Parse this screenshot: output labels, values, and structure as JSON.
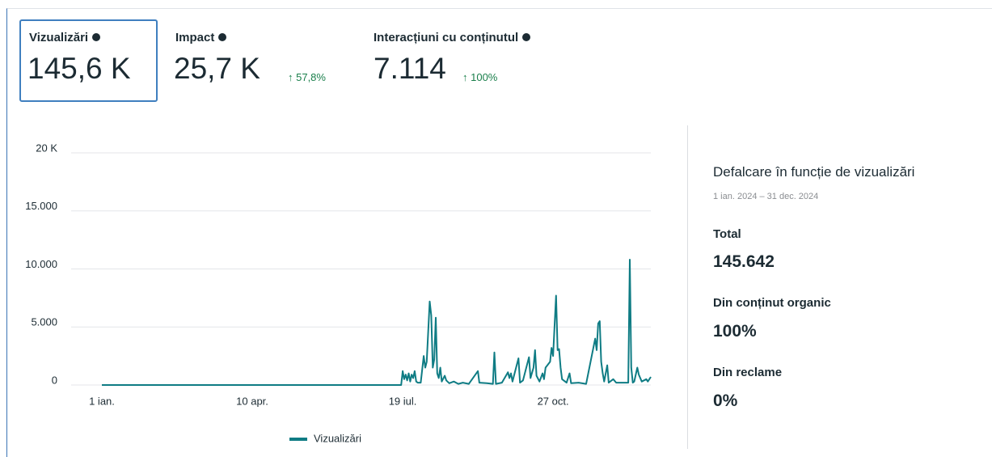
{
  "metrics": [
    {
      "label": "Vizualizări",
      "value": "145,6 K"
    },
    {
      "label": "Impact",
      "value": "25,7 K",
      "change": "↑ 57,8%"
    },
    {
      "label": "Interacțiuni cu conținutul",
      "value": "7.114",
      "change": "↑ 100%"
    }
  ],
  "chart_data": {
    "type": "line",
    "x": [
      0,
      199,
      200,
      201,
      202,
      203,
      204,
      205,
      206,
      207,
      208,
      209,
      210,
      212,
      214,
      215,
      216,
      218,
      219,
      220,
      221,
      222,
      223,
      224,
      225,
      226,
      228,
      229,
      231,
      234,
      237,
      240,
      244,
      250,
      251,
      256,
      260,
      261,
      262,
      266,
      270,
      271,
      272,
      273,
      277,
      278,
      280,
      284,
      285,
      287,
      288,
      289,
      291,
      293,
      294,
      295,
      298,
      299,
      300,
      302,
      303,
      304,
      305,
      306,
      309,
      311,
      312,
      317,
      322,
      328,
      329,
      330,
      331,
      332,
      333,
      334,
      336,
      337,
      340,
      342,
      350,
      351,
      352,
      353,
      354,
      356,
      357,
      359,
      362,
      363,
      365
    ],
    "series": [
      {
        "name": "Vizualizări",
        "color": "#0f7c84",
        "values": [
          0,
          0,
          1200,
          500,
          900,
          400,
          1000,
          300,
          900,
          600,
          1200,
          300,
          200,
          200,
          2500,
          1500,
          2000,
          7200,
          6000,
          1500,
          2200,
          5800,
          1000,
          600,
          1500,
          300,
          800,
          400,
          150,
          300,
          100,
          200,
          100,
          1200,
          200,
          150,
          100,
          2800,
          100,
          200,
          1100,
          600,
          1000,
          300,
          2300,
          200,
          400,
          2400,
          600,
          1500,
          3000,
          800,
          300,
          1000,
          500,
          1500,
          2000,
          3200,
          2500,
          7700,
          3000,
          3100,
          1500,
          500,
          200,
          1000,
          150,
          200,
          100,
          4000,
          3000,
          5300,
          5500,
          2000,
          1000,
          300,
          1700,
          200,
          500,
          200,
          200,
          10800,
          1500,
          200,
          300,
          1500,
          900,
          300,
          500,
          300,
          700
        ]
      }
    ],
    "xlim": [
      0,
      365
    ],
    "xticks": [
      {
        "value": 0,
        "label": "1 ian."
      },
      {
        "value": 100,
        "label": "10 apr."
      },
      {
        "value": 200,
        "label": "19 iul."
      },
      {
        "value": 300,
        "label": "27 oct."
      }
    ],
    "ylim": [
      0,
      20000
    ],
    "yticks": [
      0,
      {
        "value": 5000,
        "label": "5.000"
      },
      {
        "value": 10000,
        "label": "10.000"
      },
      {
        "value": 15000,
        "label": "15.000"
      },
      {
        "value": 20000,
        "label": "20 K"
      }
    ],
    "grid": true
  },
  "breakdown": {
    "title": "Defalcare în funcție de vizualizări",
    "date_range": "1 ian. 2024 – 31 dec. 2024",
    "items": [
      {
        "label": "Total",
        "value": "145.642"
      },
      {
        "label": "Din conținut organic",
        "value": "100%"
      },
      {
        "label": "Din reclame",
        "value": "0%"
      }
    ]
  }
}
